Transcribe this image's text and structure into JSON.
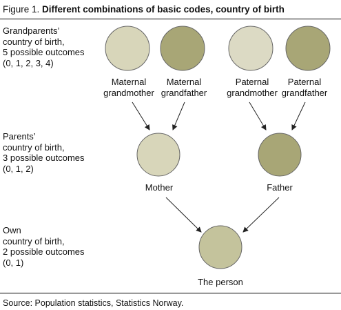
{
  "figure": {
    "prefix": "Figure 1.",
    "title": "Different combinations of basic codes, country of birth"
  },
  "levels": [
    {
      "label": "Grandparents’\ncountry of birth,\n5 possible outcomes\n(0, 1, 2, 3, 4)"
    },
    {
      "label": "Parents’\ncountry of birth,\n3 possible outcomes\n(0, 1, 2)"
    },
    {
      "label": "Own\ncountry of birth,\n2 possible outcomes\n(0, 1)"
    }
  ],
  "nodes": {
    "maternal_grandmother": {
      "label": "Maternal\ngrandmother",
      "color": "#d8d6ba"
    },
    "maternal_grandfather": {
      "label": "Maternal\ngrandfather",
      "color": "#a8a676"
    },
    "paternal_grandmother": {
      "label": "Paternal\ngrandmother",
      "color": "#dcdac4"
    },
    "paternal_grandfather": {
      "label": "Paternal\ngrandfather",
      "color": "#a8a676"
    },
    "mother": {
      "label": "Mother",
      "color": "#d8d6ba"
    },
    "father": {
      "label": "Father",
      "color": "#a8a676"
    },
    "person": {
      "label": "The person",
      "color": "#c4c39c"
    }
  },
  "source": "Source: Population statistics, Statistics Norway.",
  "colors": {
    "stroke": "#555555",
    "arrow": "#222222"
  }
}
